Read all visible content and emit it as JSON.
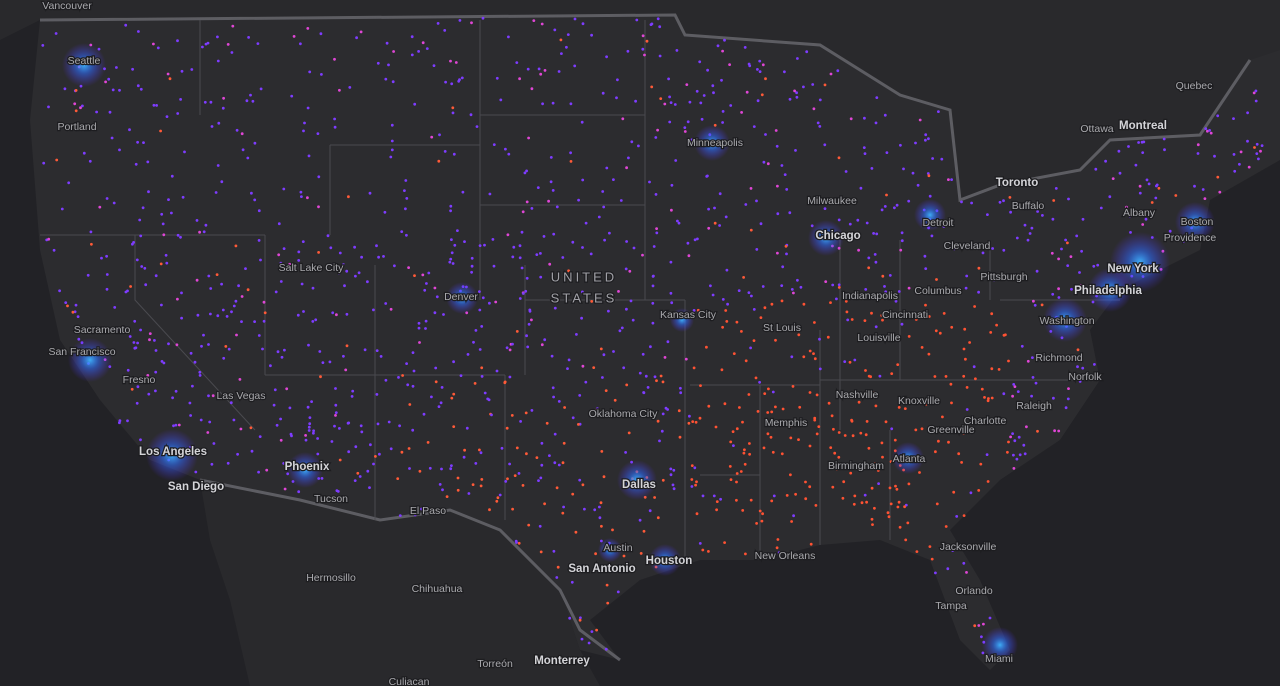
{
  "map": {
    "country_label": [
      "UNITED",
      "STATES"
    ],
    "cities": [
      "Vancouver",
      "Seattle",
      "Portland",
      "Sacramento",
      "San Francisco",
      "Fresno",
      "Salt Lake City",
      "Las Vegas",
      "Los Angeles",
      "San Diego",
      "Phoenix",
      "Tucson",
      "Denver",
      "El Paso",
      "Minneapolis",
      "Milwaukee",
      "Chicago",
      "Detroit",
      "Toronto",
      "Ottawa",
      "Montreal",
      "Quebec",
      "Buffalo",
      "Albany",
      "Boston",
      "Providence",
      "New York",
      "Philadelphia",
      "Cleveland",
      "Pittsburgh",
      "Columbus",
      "Indianapolis",
      "Cincinnati",
      "Kansas City",
      "St Louis",
      "Louisville",
      "Washington",
      "Richmond",
      "Norfolk",
      "Raleigh",
      "Nashville",
      "Knoxville",
      "Charlotte",
      "Greenville",
      "Memphis",
      "Oklahoma City",
      "Dallas",
      "Austin",
      "San Antonio",
      "Houston",
      "Birmingham",
      "Atlanta",
      "New Orleans",
      "Jacksonville",
      "Orlando",
      "Tampa",
      "Miami",
      "Hermosillo",
      "Chihuahua",
      "Monterrey",
      "Torreón",
      "Culiacan"
    ]
  }
}
